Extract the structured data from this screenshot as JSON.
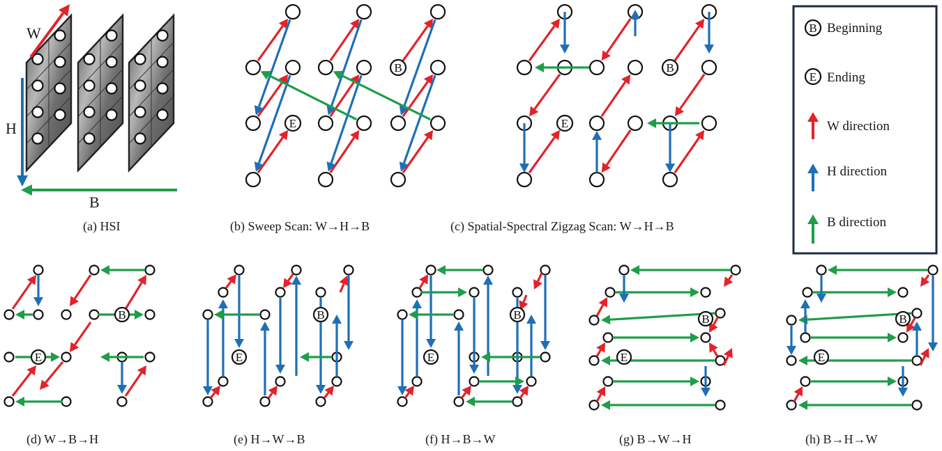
{
  "captions": {
    "a": "(a) HSI",
    "b": "(b) Sweep Scan: W→H→B",
    "c": "(c) Spatial-Spectral Zigzag Scan: W→H→B",
    "d": "(d) W→B→H",
    "e": "(e) H→W→B",
    "f": "(f) H→B→W",
    "g": "(g) B→W→H",
    "h": "(h) B→H→W"
  },
  "hsi_axes": {
    "w": "W",
    "h": "H",
    "b": "B"
  },
  "markers": {
    "begin": "B",
    "end": "E"
  },
  "legend": {
    "beginning": "Beginning",
    "ending": "Ending",
    "w_direction": "W direction",
    "h_direction": "H direction",
    "b_direction": "B direction"
  },
  "colors": {
    "w": "#e2232a",
    "h": "#1f6fb6",
    "b": "#1f9d49",
    "frame": "#1c2a44"
  }
}
